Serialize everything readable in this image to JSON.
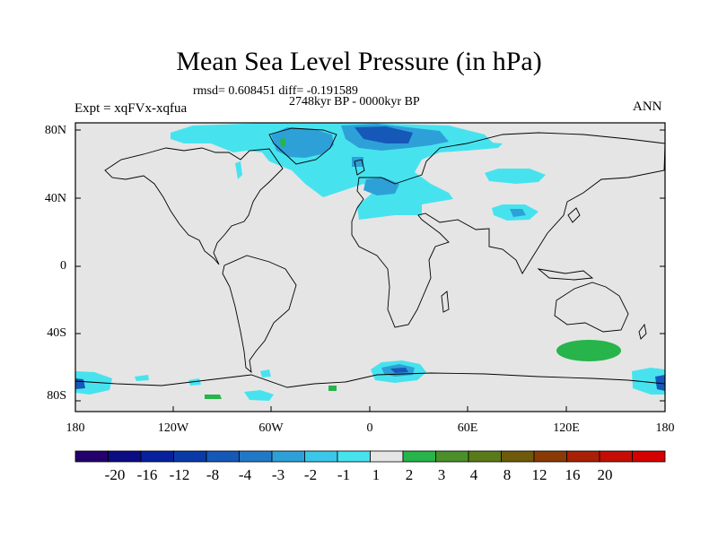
{
  "header": {
    "title": "Mean Sea Level Pressure (in hPa)",
    "stats": "rmsd= 0.608451 diff= -0.191589",
    "period": "2748kyr BP - 0000kyr BP",
    "experiment": "Expt = xqFVx-xqfua",
    "season": "ANN"
  },
  "axes": {
    "lat_labels": [
      "80N",
      "40N",
      "0",
      "40S",
      "80S"
    ],
    "lon_labels": [
      "180",
      "120W",
      "60W",
      "0",
      "60E",
      "120E",
      "180"
    ]
  },
  "colorbar": {
    "labels": [
      "-20",
      "-16",
      "-12",
      "-8",
      "-4",
      "-3",
      "-2",
      "-1",
      "1",
      "2",
      "3",
      "4",
      "8",
      "12",
      "16",
      "20"
    ],
    "colors": [
      "#23006a",
      "#0b0c83",
      "#07209d",
      "#093aa8",
      "#1658b8",
      "#2278c6",
      "#2ea0d8",
      "#3ac7ea",
      "#46e3ef",
      "#e5e5e5",
      "#27b44a",
      "#4b8f2a",
      "#5a7a1a",
      "#6e5a0a",
      "#8a3a05",
      "#a82005",
      "#c40d05",
      "#d40000"
    ]
  },
  "colors": {
    "land_sea_background": "#e5e5e5",
    "anomaly_light_blue": "#46e3ef",
    "anomaly_mid_blue": "#2ea0d8",
    "anomaly_dark_blue": "#1658b8",
    "anomaly_green": "#27b44a"
  }
}
